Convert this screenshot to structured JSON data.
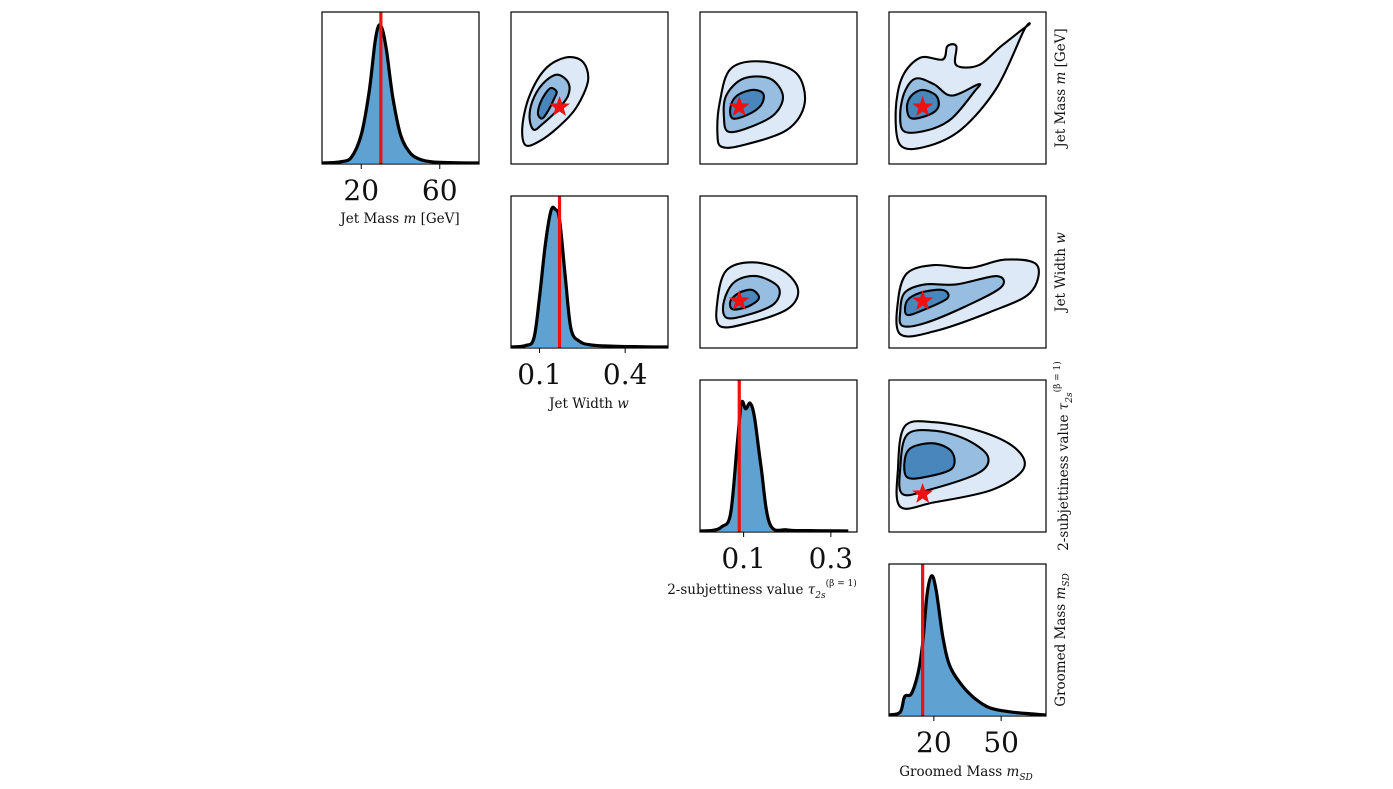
{
  "chart_data": {
    "type": "corner",
    "variables": [
      {
        "id": "m",
        "label": "Jet Mass m [GeV]",
        "range": [
          0,
          80
        ],
        "ticks": [
          20,
          60
        ],
        "truth": 30
      },
      {
        "id": "w",
        "label": "Jet Width w",
        "range": [
          0,
          0.55
        ],
        "ticks": [
          0.1,
          0.4
        ],
        "truth": 0.17
      },
      {
        "id": "tau",
        "label": "2-subjettiness value τ2s(β=1)",
        "range": [
          0,
          0.36
        ],
        "ticks": [
          0.1,
          0.3
        ],
        "truth": 0.09
      },
      {
        "id": "msd",
        "label": "Groomed Mass mSD",
        "range": [
          0,
          70
        ],
        "ticks": [
          20,
          50
        ],
        "truth": 15
      }
    ],
    "histograms": [
      {
        "var": "m",
        "x": [
          0,
          5,
          10,
          15,
          20,
          24,
          27,
          29,
          31,
          33,
          36,
          40,
          45,
          50,
          55,
          60,
          70,
          80
        ],
        "y": [
          0,
          0.003,
          0.01,
          0.04,
          0.2,
          0.5,
          0.85,
          0.97,
          0.93,
          0.78,
          0.47,
          0.2,
          0.07,
          0.025,
          0.01,
          0.004,
          0.001,
          0
        ]
      },
      {
        "var": "w",
        "x": [
          0,
          0.05,
          0.08,
          0.1,
          0.12,
          0.14,
          0.155,
          0.17,
          0.19,
          0.21,
          0.24,
          0.28,
          0.35,
          0.45,
          0.55
        ],
        "y": [
          0,
          0.01,
          0.06,
          0.35,
          0.72,
          0.96,
          0.97,
          0.9,
          0.5,
          0.13,
          0.04,
          0.015,
          0.006,
          0.002,
          0
        ]
      },
      {
        "var": "tau",
        "x": [
          0,
          0.03,
          0.05,
          0.07,
          0.085,
          0.095,
          0.105,
          0.115,
          0.125,
          0.14,
          0.16,
          0.2,
          0.25,
          0.3,
          0.34
        ],
        "y": [
          0,
          0.005,
          0.03,
          0.12,
          0.6,
          0.9,
          0.86,
          0.9,
          0.8,
          0.45,
          0.05,
          0.008,
          0.003,
          0.001,
          0
        ]
      },
      {
        "var": "msd",
        "x": [
          0,
          5,
          7,
          10,
          13,
          15,
          17,
          19,
          21,
          24,
          27,
          32,
          38,
          45,
          55,
          65,
          70
        ],
        "y": [
          0,
          0.02,
          0.13,
          0.15,
          0.3,
          0.5,
          0.85,
          0.98,
          0.88,
          0.55,
          0.35,
          0.22,
          0.12,
          0.05,
          0.02,
          0.006,
          0
        ]
      }
    ],
    "contour_panels": [
      {
        "xvar": "w",
        "yvar": "m",
        "inner": [
          [
            0.11,
            24
          ],
          [
            0.13,
            28
          ],
          [
            0.15,
            34
          ],
          [
            0.16,
            38
          ],
          [
            0.14,
            40
          ],
          [
            0.12,
            37
          ],
          [
            0.1,
            31
          ],
          [
            0.095,
            26
          ]
        ],
        "mid": [
          [
            0.08,
            18
          ],
          [
            0.11,
            21
          ],
          [
            0.16,
            28
          ],
          [
            0.2,
            36
          ],
          [
            0.2,
            43
          ],
          [
            0.16,
            47
          ],
          [
            0.11,
            42
          ],
          [
            0.075,
            33
          ],
          [
            0.065,
            24
          ]
        ],
        "outer": [
          [
            0.05,
            10
          ],
          [
            0.1,
            12
          ],
          [
            0.17,
            20
          ],
          [
            0.23,
            30
          ],
          [
            0.27,
            44
          ],
          [
            0.25,
            54
          ],
          [
            0.19,
            56
          ],
          [
            0.12,
            50
          ],
          [
            0.065,
            36
          ],
          [
            0.04,
            20
          ]
        ]
      },
      {
        "xvar": "tau",
        "yvar": "m",
        "inner": [
          [
            0.075,
            24
          ],
          [
            0.11,
            26
          ],
          [
            0.14,
            31
          ],
          [
            0.145,
            37
          ],
          [
            0.12,
            39
          ],
          [
            0.085,
            36
          ],
          [
            0.07,
            30
          ]
        ],
        "mid": [
          [
            0.065,
            17
          ],
          [
            0.11,
            19
          ],
          [
            0.17,
            26
          ],
          [
            0.19,
            36
          ],
          [
            0.16,
            45
          ],
          [
            0.1,
            45
          ],
          [
            0.06,
            36
          ],
          [
            0.055,
            24
          ]
        ],
        "outer": [
          [
            0.05,
            9
          ],
          [
            0.1,
            10
          ],
          [
            0.2,
            18
          ],
          [
            0.24,
            32
          ],
          [
            0.22,
            48
          ],
          [
            0.14,
            54
          ],
          [
            0.07,
            50
          ],
          [
            0.045,
            32
          ],
          [
            0.04,
            16
          ]
        ]
      },
      {
        "xvar": "msd",
        "yvar": "m",
        "inner": [
          [
            10,
            24
          ],
          [
            18,
            26
          ],
          [
            22,
            30
          ],
          [
            21,
            36
          ],
          [
            15,
            39
          ],
          [
            10,
            36
          ],
          [
            8,
            30
          ]
        ],
        "mid": [
          [
            7,
            17
          ],
          [
            18,
            18
          ],
          [
            28,
            24
          ],
          [
            38,
            38
          ],
          [
            40,
            42
          ],
          [
            28,
            36
          ],
          [
            20,
            42
          ],
          [
            12,
            45
          ],
          [
            7,
            38
          ],
          [
            5,
            26
          ]
        ],
        "outer": [
          [
            5,
            10
          ],
          [
            16,
            9
          ],
          [
            32,
            18
          ],
          [
            48,
            40
          ],
          [
            60,
            70
          ],
          [
            62,
            73
          ],
          [
            50,
            62
          ],
          [
            40,
            52
          ],
          [
            30,
            52
          ],
          [
            30,
            62
          ],
          [
            26,
            62
          ],
          [
            24,
            55
          ],
          [
            14,
            56
          ],
          [
            6,
            46
          ],
          [
            3,
            28
          ]
        ]
      },
      {
        "xvar": "tau",
        "yvar": "w",
        "inner": [
          [
            0.075,
            0.14
          ],
          [
            0.11,
            0.15
          ],
          [
            0.135,
            0.18
          ],
          [
            0.12,
            0.21
          ],
          [
            0.09,
            0.2
          ],
          [
            0.07,
            0.17
          ]
        ],
        "mid": [
          [
            0.06,
            0.11
          ],
          [
            0.11,
            0.12
          ],
          [
            0.17,
            0.16
          ],
          [
            0.18,
            0.22
          ],
          [
            0.13,
            0.26
          ],
          [
            0.08,
            0.24
          ],
          [
            0.055,
            0.17
          ]
        ],
        "outer": [
          [
            0.045,
            0.08
          ],
          [
            0.11,
            0.09
          ],
          [
            0.2,
            0.14
          ],
          [
            0.225,
            0.21
          ],
          [
            0.19,
            0.28
          ],
          [
            0.12,
            0.31
          ],
          [
            0.06,
            0.28
          ],
          [
            0.04,
            0.17
          ]
        ]
      },
      {
        "xvar": "msd",
        "yvar": "w",
        "inner": [
          [
            8,
            0.12
          ],
          [
            16,
            0.14
          ],
          [
            26,
            0.18
          ],
          [
            24,
            0.21
          ],
          [
            14,
            0.2
          ],
          [
            8,
            0.17
          ]
        ],
        "mid": [
          [
            6,
            0.08
          ],
          [
            16,
            0.09
          ],
          [
            34,
            0.15
          ],
          [
            50,
            0.22
          ],
          [
            48,
            0.26
          ],
          [
            30,
            0.23
          ],
          [
            16,
            0.23
          ],
          [
            7,
            0.2
          ],
          [
            5,
            0.13
          ]
        ],
        "outer": [
          [
            5,
            0.05
          ],
          [
            20,
            0.06
          ],
          [
            45,
            0.13
          ],
          [
            63,
            0.2
          ],
          [
            66,
            0.3
          ],
          [
            52,
            0.32
          ],
          [
            36,
            0.29
          ],
          [
            20,
            0.3
          ],
          [
            8,
            0.27
          ],
          [
            4,
            0.17
          ]
        ]
      },
      {
        "xvar": "msd",
        "yvar": "tau",
        "inner": [
          [
            8,
            0.13
          ],
          [
            16,
            0.13
          ],
          [
            28,
            0.15
          ],
          [
            28,
            0.19
          ],
          [
            20,
            0.21
          ],
          [
            10,
            0.2
          ],
          [
            7,
            0.17
          ]
        ],
        "mid": [
          [
            6,
            0.09
          ],
          [
            18,
            0.1
          ],
          [
            40,
            0.14
          ],
          [
            44,
            0.18
          ],
          [
            34,
            0.22
          ],
          [
            20,
            0.24
          ],
          [
            8,
            0.23
          ],
          [
            5,
            0.15
          ]
        ],
        "outer": [
          [
            5,
            0.06
          ],
          [
            20,
            0.07
          ],
          [
            46,
            0.1
          ],
          [
            60,
            0.15
          ],
          [
            56,
            0.2
          ],
          [
            40,
            0.24
          ],
          [
            20,
            0.26
          ],
          [
            7,
            0.25
          ],
          [
            4,
            0.15
          ]
        ]
      }
    ],
    "truth_color": "#ee1111",
    "hist_color": "#5fa2d2",
    "contour_color": "#000000"
  }
}
